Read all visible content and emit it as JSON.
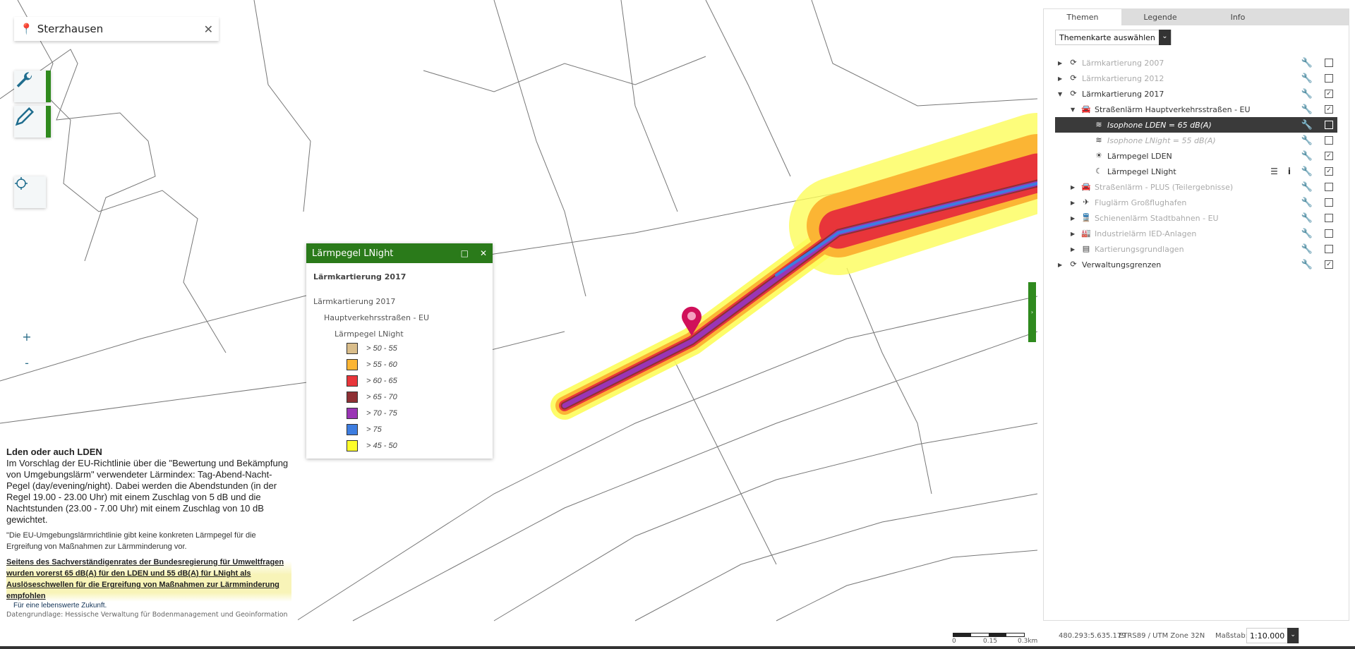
{
  "search": {
    "value": "Sterzhausen",
    "icon": "map-pin-icon",
    "clear_icon": "close-icon"
  },
  "map_controls": {
    "tools_icon": "wrench-icon",
    "draw_icon": "pencil-icon",
    "locate_icon": "crosshair-icon",
    "zoom_in": "+",
    "zoom_out": "-",
    "accent": "#2f8a1e"
  },
  "legend_popup": {
    "title": "Lärmpegel LNight",
    "heading": "Lärmkartierung 2017",
    "path": [
      "Lärmkartierung 2017",
      "Hauptverkehrsstraßen - EU",
      "Lärmpegel LNight"
    ],
    "items": [
      {
        "label": "> 50 - 55",
        "color": "#d9bd8a"
      },
      {
        "label": "> 55 - 60",
        "color": "#fbb534"
      },
      {
        "label": "> 60 - 65",
        "color": "#e8353a"
      },
      {
        "label": "> 65 - 70",
        "color": "#8e3034"
      },
      {
        "label": "> 70 - 75",
        "color": "#9a35b5"
      },
      {
        "label": "> 75",
        "color": "#3d7de0"
      },
      {
        "label": "> 45 - 50",
        "color": "#fdfd2a"
      }
    ]
  },
  "note": {
    "title": "Lden oder auch LDEN",
    "p1": "Im Vorschlag der EU-Richtlinie über die \"Bewertung und Bekämpfung von Umgebungslärm\" verwendeter Lärmindex: Tag-Abend-Nacht-Pegel (day/evening/night). Dabei werden die Abendstunden (in der Regel 19.00 - 23.00 Uhr) mit einem Zuschlag von 5 dB und die Nachtstunden (23.00 - 7.00 Uhr) mit einem Zuschlag von 10 dB gewichtet.",
    "p2": "\"Die EU-Umgebungslärmrichtlinie gibt keine konkreten Lärmpegel für die Ergreifung von Maßnahmen zur Lärmminderung vor.",
    "p3": "Seitens des Sachverständigenrates der Bundesregierung für Umweltfragen wurden vorerst 65 dB(A) für den LDEN und 55 dB(A) für LNight als Auslöseschwellen für die Ergreifung von Maßnahmen zur Lärmminderung empfohlen",
    "p4": "Für eine lebenswerte Zukunft.",
    "p5": "Datengrundlage: Hessische Verwaltung für Bodenmanagement und Geoinformation"
  },
  "panel": {
    "tabs": [
      "Themen",
      "Legende",
      "Info"
    ],
    "active_tab": "Themen",
    "select_value": "Themenkarte auswählen",
    "tree": [
      {
        "label": "Lärmkartierung 2007",
        "checked": false
      },
      {
        "label": "Lärmkartierung 2012",
        "checked": false
      },
      {
        "label": "Lärmkartierung 2017",
        "checked": true
      },
      {
        "label": "Straßenlärm Hauptverkehrsstraßen - EU",
        "checked": true
      },
      {
        "label": "Isophone LDEN = 65 dB(A)",
        "checked": false,
        "selected": true
      },
      {
        "label": "Isophone LNight = 55 dB(A)",
        "checked": false
      },
      {
        "label": "Lärmpegel LDEN",
        "checked": true
      },
      {
        "label": "Lärmpegel LNight",
        "checked": true
      },
      {
        "label": "Straßenlärm - PLUS (Teilergebnisse)",
        "checked": false
      },
      {
        "label": "Fluglärm Großflughafen",
        "checked": false
      },
      {
        "label": "Schienenlärm Stadtbahnen - EU",
        "checked": false
      },
      {
        "label": "Industrielärm IED-Anlagen",
        "checked": false
      },
      {
        "label": "Kartierungsgrundlagen",
        "checked": false
      },
      {
        "label": "Verwaltungsgrenzen",
        "checked": true
      }
    ]
  },
  "footer": {
    "scale_labels": [
      "0",
      "0.15",
      "0.3km"
    ],
    "coordinates": "480.293:5.635.179",
    "crs": "ETRS89 / UTM Zone 32N",
    "scale_label": "Maßstab:",
    "scale_value": "1:10.000"
  }
}
